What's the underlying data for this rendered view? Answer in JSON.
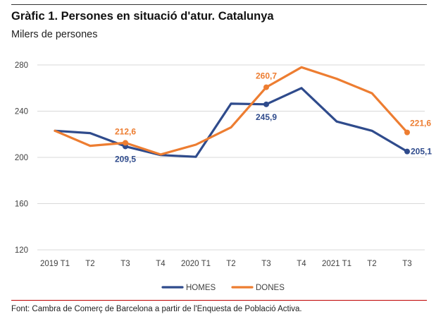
{
  "header": {
    "title": "Gràfic 1. Persones en situació d'atur. Catalunya",
    "subtitle": "Milers de persones"
  },
  "footer": {
    "source": "Font: Cambra de Comerç de Barcelona a partir de l'Enquesta de Població Activa."
  },
  "colors": {
    "homes": "#2F4B8C",
    "dones": "#ED7D31",
    "grid": "#d9d9d9",
    "axis_text": "#404040"
  },
  "chart_data": {
    "type": "line",
    "title": "Gràfic 1. Persones en situació d'atur. Catalunya",
    "ylabel": "Milers de persones",
    "categories": [
      "2019 T1",
      "T2",
      "T3",
      "T4",
      "2020 T1",
      "T2",
      "T3",
      "T4",
      "2021 T1",
      "T2",
      "T3"
    ],
    "yticks": [
      120,
      160,
      200,
      240,
      280
    ],
    "ylim": [
      120,
      280
    ],
    "grid": true,
    "legend_position": "bottom",
    "series": [
      {
        "name": "HOMES",
        "color": "#2F4B8C",
        "values": [
          223,
          221,
          209.5,
          202,
          200.5,
          246.5,
          245.9,
          260,
          231,
          223,
          205.1
        ]
      },
      {
        "name": "DONES",
        "color": "#ED7D31",
        "values": [
          223,
          210,
          212.6,
          202.5,
          211,
          226,
          260.7,
          278,
          268,
          255.5,
          221.6
        ]
      }
    ],
    "data_labels": [
      {
        "series": 0,
        "index": 2,
        "text": "209,5",
        "pos": "below"
      },
      {
        "series": 1,
        "index": 2,
        "text": "212,6",
        "pos": "above"
      },
      {
        "series": 0,
        "index": 6,
        "text": "245,9",
        "pos": "below"
      },
      {
        "series": 1,
        "index": 6,
        "text": "260,7",
        "pos": "above"
      },
      {
        "series": 0,
        "index": 10,
        "text": "205,1",
        "pos": "right"
      },
      {
        "series": 1,
        "index": 10,
        "text": "221,6",
        "pos": "right-up"
      }
    ]
  }
}
